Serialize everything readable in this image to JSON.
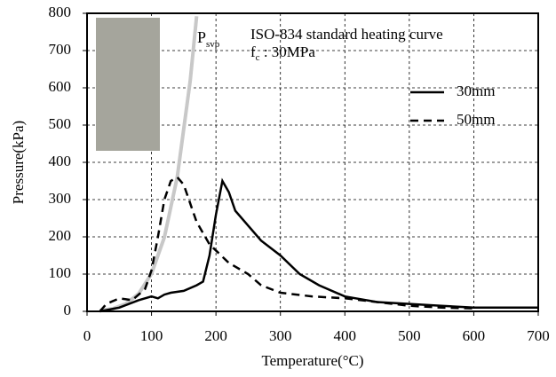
{
  "chart_data": {
    "type": "line",
    "x_label": "Temperature(°C)",
    "y_label": "Pressure(kPa)",
    "xlim": [
      0,
      700
    ],
    "xticks": [
      0,
      100,
      200,
      300,
      400,
      500,
      600,
      700
    ],
    "ylim": [
      0,
      800
    ],
    "yticks": [
      0,
      100,
      200,
      300,
      400,
      500,
      600,
      700,
      800
    ],
    "grid": true,
    "legend": "upper right",
    "curve_label": {
      "main": "P",
      "sub": "svp"
    },
    "annotation": "ISO-834 standard heating curve",
    "strength_label": {
      "main": "f",
      "sub": "c",
      "rest": " : 30MPa"
    },
    "series": [
      {
        "name": "30mm",
        "color": "#000000",
        "dash": "solid",
        "x": [
          20,
          50,
          80,
          100,
          110,
          120,
          130,
          150,
          170,
          180,
          190,
          200,
          210,
          220,
          230,
          250,
          270,
          300,
          330,
          360,
          400,
          450,
          500,
          550,
          600,
          700
        ],
        "values": [
          0,
          10,
          30,
          40,
          35,
          45,
          50,
          55,
          70,
          80,
          150,
          260,
          350,
          320,
          270,
          230,
          190,
          150,
          100,
          70,
          40,
          25,
          20,
          15,
          10,
          10
        ]
      },
      {
        "name": "50mm",
        "color": "#000000",
        "dash": "dashed",
        "x": [
          20,
          30,
          50,
          70,
          90,
          100,
          110,
          120,
          130,
          140,
          150,
          160,
          170,
          190,
          220,
          250,
          270,
          300,
          350,
          400,
          450,
          500,
          550,
          600
        ],
        "values": [
          0,
          20,
          35,
          30,
          60,
          110,
          200,
          300,
          350,
          360,
          340,
          290,
          240,
          180,
          130,
          100,
          70,
          50,
          40,
          35,
          25,
          15,
          10,
          8
        ]
      },
      {
        "color": "#c8c8c8",
        "dash": "solid",
        "x": [
          20,
          40,
          60,
          80,
          100,
          120,
          140,
          160,
          170
        ],
        "values": [
          2,
          7,
          20,
          47,
          101,
          199,
          361,
          618,
          792
        ]
      }
    ]
  }
}
